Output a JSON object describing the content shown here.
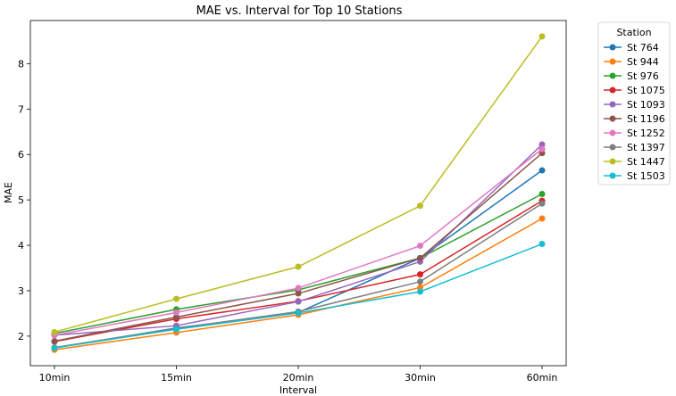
{
  "chart_data": {
    "type": "line",
    "title": "MAE vs. Interval for Top 10 Stations",
    "xlabel": "Interval",
    "ylabel": "MAE",
    "categories": [
      "10min",
      "15min",
      "20min",
      "30min",
      "60min"
    ],
    "ylim": [
      1.35,
      8.95
    ],
    "yticks": [
      2,
      3,
      4,
      5,
      6,
      7,
      8
    ],
    "grid": false,
    "legend": {
      "title": "Station",
      "placement": "outside-top-right"
    },
    "series": [
      {
        "name": "St 764",
        "color": "#1f77b4",
        "values": [
          1.74,
          2.18,
          2.52,
          3.72,
          5.65
        ]
      },
      {
        "name": "St 944",
        "color": "#ff7f0e",
        "values": [
          1.7,
          2.08,
          2.47,
          3.07,
          4.59
        ]
      },
      {
        "name": "St 976",
        "color": "#2ca02c",
        "values": [
          2.06,
          2.59,
          3.02,
          3.72,
          5.13
        ]
      },
      {
        "name": "St 1075",
        "color": "#d62728",
        "values": [
          1.88,
          2.38,
          2.77,
          3.36,
          4.98
        ]
      },
      {
        "name": "St 1093",
        "color": "#9467bd",
        "values": [
          2.02,
          2.23,
          2.76,
          3.64,
          6.22
        ]
      },
      {
        "name": "St 1196",
        "color": "#8c564b",
        "values": [
          1.89,
          2.42,
          2.94,
          3.72,
          6.03
        ]
      },
      {
        "name": "St 1252",
        "color": "#e377c2",
        "values": [
          2.02,
          2.52,
          3.06,
          3.99,
          6.12
        ]
      },
      {
        "name": "St 1397",
        "color": "#7f7f7f",
        "values": [
          1.75,
          2.17,
          2.54,
          3.2,
          4.92
        ]
      },
      {
        "name": "St 1447",
        "color": "#bcbd22",
        "values": [
          2.09,
          2.82,
          3.53,
          4.87,
          8.6
        ]
      },
      {
        "name": "St 1503",
        "color": "#17becf",
        "values": [
          1.74,
          2.15,
          2.51,
          2.98,
          4.03
        ]
      }
    ]
  }
}
